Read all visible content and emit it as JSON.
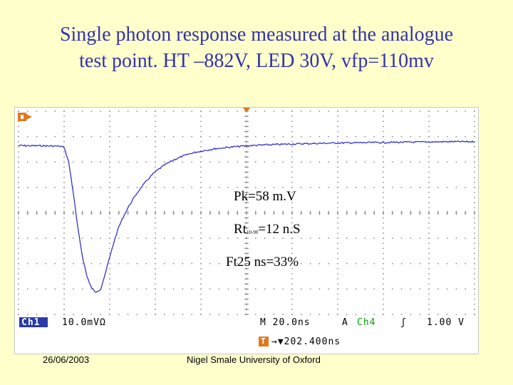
{
  "title": {
    "line1": "Single photon response measured at the analogue",
    "line2": "test point.  HT –882V, LED 30V, vfp=110mv"
  },
  "annotations": {
    "peak": "Pk=58 m.V",
    "rise_prefix": "Rt",
    "rise_sub": "10-90",
    "rise_suffix": "=12 n.S",
    "fall": "Ft25 ns=33%"
  },
  "scope": {
    "ch1_label": "Ch1",
    "ch1_scale": "10.0mVΩ",
    "timebase": "M 20.0ns",
    "trigger_mode": "A",
    "trigger_source": "Ch4",
    "trigger_slope": "ʃ",
    "trigger_level": "1.00 V",
    "trigger_marker": "T",
    "trigger_offset": "→▼202.400ns",
    "colors": {
      "trace": "#3333cc",
      "grid": "#888888",
      "ch1_badge": "#2a3aa8",
      "trigger_marker": "#e07820",
      "ch4": "#00a000"
    }
  },
  "chart_data": {
    "type": "line",
    "title": "",
    "xlabel": "",
    "ylabel": "",
    "x_unit": "ns",
    "y_unit": "mV",
    "xlim": [
      0,
      200
    ],
    "ylim": [
      -40,
      40
    ],
    "grid": true,
    "series": [
      {
        "x": [
          0,
          5,
          10,
          15,
          18,
          20,
          22,
          24,
          26,
          28,
          30,
          32,
          34,
          36,
          38,
          40,
          42,
          44,
          46,
          48,
          50,
          52,
          54,
          56,
          58,
          60,
          64,
          68,
          72,
          76,
          80,
          86,
          92,
          100,
          110,
          120,
          130,
          140,
          150,
          160,
          170,
          180,
          190,
          200
        ],
        "y": [
          26.5,
          26.4,
          26.4,
          26.3,
          26.2,
          25.8,
          20,
          8,
          -6,
          -17,
          -25,
          -29.5,
          -31.5,
          -30,
          -24,
          -17.5,
          -11,
          -5.5,
          -1.5,
          2,
          5,
          7.8,
          10.2,
          12.4,
          14.4,
          16.2,
          18.8,
          20.8,
          22.3,
          23.5,
          24.3,
          25.2,
          25.8,
          26.4,
          26.8,
          27.1,
          27.3,
          27.5,
          27.6,
          27.7,
          27.8,
          27.9,
          28,
          28
        ]
      }
    ]
  },
  "footer": {
    "date": "26/06/2003",
    "author": "Nigel Smale University of Oxford"
  }
}
